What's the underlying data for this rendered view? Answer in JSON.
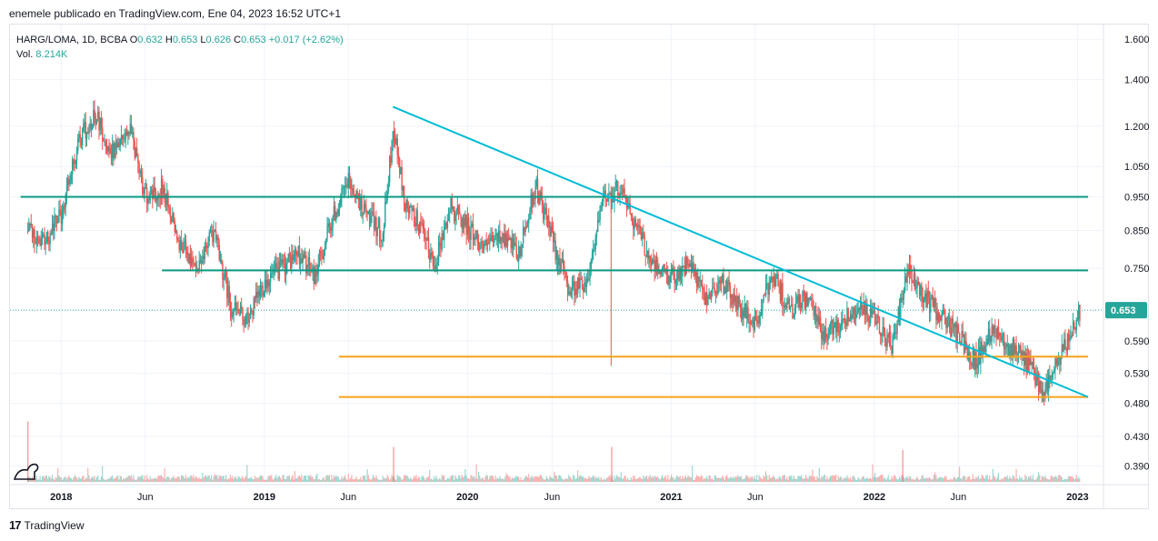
{
  "header": {
    "text": "enemele publicado en TradingView.com, Ene 04, 2023 16:52 UTC+1"
  },
  "legend": {
    "symbol": "HARG/LOMA, 1D, BCBA",
    "o_label": "O",
    "o_value": "0.632",
    "h_label": "H",
    "h_value": "0.653",
    "l_label": "L",
    "l_value": "0.626",
    "c_label": "C",
    "c_value": "0.653",
    "change": "+0.017 (+2.62%)",
    "vol_label": "Vol.",
    "vol_value": "8.214K"
  },
  "footer": {
    "logo": "17",
    "brand": "TradingView"
  },
  "colors": {
    "up": "#26a69a",
    "down": "#ef5350",
    "trendline": "#00bcd4",
    "resistance": "#089981",
    "support": "#f7a21b",
    "last_price_bg": "#26a69a"
  },
  "chart_data": {
    "type": "candlestick",
    "title": "HARG/LOMA, 1D, BCBA",
    "y_scale": "log",
    "ylim": [
      0.37,
      1.68
    ],
    "y_ticks": [
      "1.600",
      "1.400",
      "1.200",
      "1.050",
      "0.950",
      "0.850",
      "0.750",
      "0.590",
      "0.530",
      "0.480",
      "0.430",
      "0.390"
    ],
    "y_tick_values": [
      1.6,
      1.4,
      1.2,
      1.05,
      0.95,
      0.85,
      0.75,
      0.59,
      0.53,
      0.48,
      0.43,
      0.39
    ],
    "x_range": [
      "2017-10-01",
      "2023-02-15"
    ],
    "x_ticks": [
      {
        "label": "2018",
        "date": "2018-01-01"
      },
      {
        "label": "Jun",
        "date": "2018-06-01"
      },
      {
        "label": "2019",
        "date": "2019-01-01"
      },
      {
        "label": "Jun",
        "date": "2019-06-01"
      },
      {
        "label": "2020",
        "date": "2020-01-01"
      },
      {
        "label": "Jun",
        "date": "2020-06-01"
      },
      {
        "label": "2021",
        "date": "2021-01-01"
      },
      {
        "label": "Jun",
        "date": "2021-06-01"
      },
      {
        "label": "2022",
        "date": "2022-01-01"
      },
      {
        "label": "Jun",
        "date": "2022-06-01"
      },
      {
        "label": "2023",
        "date": "2023-01-01"
      }
    ],
    "price_path": [
      [
        "2017-11-01",
        0.85
      ],
      [
        "2017-12-01",
        0.82
      ],
      [
        "2018-01-01",
        0.9
      ],
      [
        "2018-02-01",
        1.15
      ],
      [
        "2018-03-01",
        1.25
      ],
      [
        "2018-04-01",
        1.1
      ],
      [
        "2018-05-01",
        1.2
      ],
      [
        "2018-06-01",
        0.95
      ],
      [
        "2018-07-01",
        0.98
      ],
      [
        "2018-08-01",
        0.82
      ],
      [
        "2018-09-01",
        0.74
      ],
      [
        "2018-10-01",
        0.85
      ],
      [
        "2018-11-01",
        0.66
      ],
      [
        "2018-12-01",
        0.63
      ],
      [
        "2019-01-01",
        0.72
      ],
      [
        "2019-02-01",
        0.75
      ],
      [
        "2019-03-01",
        0.79
      ],
      [
        "2019-04-01",
        0.73
      ],
      [
        "2019-05-01",
        0.88
      ],
      [
        "2019-06-01",
        1.0
      ],
      [
        "2019-07-01",
        0.9
      ],
      [
        "2019-08-01",
        0.84
      ],
      [
        "2019-08-20",
        1.2
      ],
      [
        "2019-09-10",
        0.92
      ],
      [
        "2019-10-01",
        0.88
      ],
      [
        "2019-11-01",
        0.76
      ],
      [
        "2019-12-01",
        0.92
      ],
      [
        "2020-01-01",
        0.86
      ],
      [
        "2020-02-01",
        0.8
      ],
      [
        "2020-03-01",
        0.84
      ],
      [
        "2020-04-01",
        0.78
      ],
      [
        "2020-05-01",
        0.99
      ],
      [
        "2020-06-01",
        0.82
      ],
      [
        "2020-07-01",
        0.7
      ],
      [
        "2020-08-01",
        0.72
      ],
      [
        "2020-09-01",
        0.95
      ],
      [
        "2020-10-01",
        0.98
      ],
      [
        "2020-11-01",
        0.85
      ],
      [
        "2020-12-01",
        0.75
      ],
      [
        "2021-01-01",
        0.73
      ],
      [
        "2021-02-01",
        0.76
      ],
      [
        "2021-03-01",
        0.68
      ],
      [
        "2021-04-01",
        0.72
      ],
      [
        "2021-05-01",
        0.66
      ],
      [
        "2021-06-01",
        0.62
      ],
      [
        "2021-07-01",
        0.74
      ],
      [
        "2021-08-01",
        0.65
      ],
      [
        "2021-09-01",
        0.68
      ],
      [
        "2021-10-01",
        0.6
      ],
      [
        "2021-11-01",
        0.63
      ],
      [
        "2021-12-01",
        0.66
      ],
      [
        "2022-01-01",
        0.63
      ],
      [
        "2022-02-01",
        0.58
      ],
      [
        "2022-03-01",
        0.74
      ],
      [
        "2022-04-01",
        0.68
      ],
      [
        "2022-05-01",
        0.64
      ],
      [
        "2022-06-01",
        0.6
      ],
      [
        "2022-07-01",
        0.55
      ],
      [
        "2022-08-01",
        0.62
      ],
      [
        "2022-09-01",
        0.58
      ],
      [
        "2022-10-01",
        0.55
      ],
      [
        "2022-11-01",
        0.5
      ],
      [
        "2022-12-01",
        0.56
      ],
      [
        "2023-01-04",
        0.653
      ]
    ],
    "volume_spikes": [
      {
        "date": "2017-11-01",
        "relative": 0.95
      },
      {
        "date": "2019-08-20",
        "relative": 0.55
      },
      {
        "date": "2020-09-15",
        "relative": 0.55
      },
      {
        "date": "2022-02-20",
        "relative": 0.5
      }
    ],
    "wick_spike": {
      "date": "2020-09-15",
      "high": 0.543
    },
    "horizontal_lines": [
      {
        "price": 0.95,
        "from": "2017-10-20",
        "to": "2023-01-20",
        "color": "#089981"
      },
      {
        "price": 0.745,
        "from": "2018-07-01",
        "to": "2023-01-20",
        "color": "#089981"
      },
      {
        "price": 0.56,
        "from": "2019-05-15",
        "to": "2023-01-20",
        "color": "#f7a21b"
      },
      {
        "price": 0.49,
        "from": "2019-05-15",
        "to": "2023-01-20",
        "color": "#f7a21b"
      }
    ],
    "trendline": {
      "from": [
        "2019-08-20",
        1.28
      ],
      "to": [
        "2023-01-20",
        0.49
      ],
      "color": "#00bcd4"
    },
    "last_price": {
      "value": 0.653,
      "label": "0.653"
    }
  }
}
